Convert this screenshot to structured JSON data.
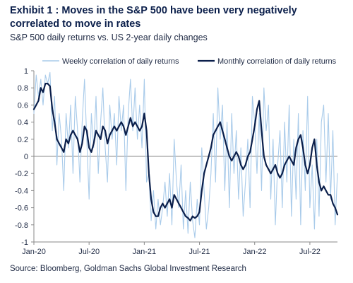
{
  "title": "Exhibit 1 : Moves in the S&P 500 have been very negatively correlated to move in rates",
  "subtitle": "S&P 500 daily returns vs. US 2-year daily changes",
  "source": "Source: Bloomberg, Goldman Sachs Global Investment Research",
  "chart_data": {
    "type": "line",
    "title": "Exhibit 1 : Moves in the S&P 500 have been very negatively correlated to move in rates",
    "subtitle": "S&P 500 daily returns vs. US 2-year daily changes",
    "xlabel": "",
    "ylabel": "",
    "ylim": [
      -1,
      1
    ],
    "xlim": [
      0,
      33
    ],
    "grid": false,
    "legend_placement": "top",
    "y_ticks": [
      {
        "value": 1,
        "label": "1"
      },
      {
        "value": 0.8,
        "label": "0.8"
      },
      {
        "value": 0.6,
        "label": "0.6"
      },
      {
        "value": 0.4,
        "label": "0.4"
      },
      {
        "value": 0.2,
        "label": "0.2"
      },
      {
        "value": 0,
        "label": "0"
      },
      {
        "value": -0.2,
        "label": "-0.2"
      },
      {
        "value": -0.4,
        "label": "-0.4"
      },
      {
        "value": -0.6,
        "label": "-0.6"
      },
      {
        "value": -0.8,
        "label": "-0.8"
      },
      {
        "value": -1,
        "label": "-1"
      }
    ],
    "x_ticks": [
      {
        "value": 0,
        "label": "Jan-20"
      },
      {
        "value": 6,
        "label": "Jul-20"
      },
      {
        "value": 12,
        "label": "Jan-21"
      },
      {
        "value": 18,
        "label": "Jul-21"
      },
      {
        "value": 24,
        "label": "Jan-22"
      },
      {
        "value": 30,
        "label": "Jul-22"
      }
    ],
    "series": [
      {
        "name": "Weekly correlation of daily returns",
        "color": "#a9cbea",
        "style": "thin",
        "x": [
          0,
          0.25,
          0.5,
          0.75,
          1,
          1.25,
          1.5,
          1.75,
          2,
          2.25,
          2.5,
          2.75,
          3,
          3.25,
          3.5,
          3.75,
          4,
          4.25,
          4.5,
          4.75,
          5,
          5.25,
          5.5,
          5.75,
          6,
          6.25,
          6.5,
          6.75,
          7,
          7.25,
          7.5,
          7.75,
          8,
          8.25,
          8.5,
          8.75,
          9,
          9.25,
          9.5,
          9.75,
          10,
          10.25,
          10.5,
          10.75,
          11,
          11.25,
          11.5,
          11.75,
          12,
          12.25,
          12.5,
          12.75,
          13,
          13.25,
          13.5,
          13.75,
          14,
          14.25,
          14.5,
          14.75,
          15,
          15.25,
          15.5,
          15.75,
          16,
          16.25,
          16.5,
          16.75,
          17,
          17.25,
          17.5,
          17.75,
          18,
          18.25,
          18.5,
          18.75,
          19,
          19.25,
          19.5,
          19.75,
          20,
          20.25,
          20.5,
          20.75,
          21,
          21.25,
          21.5,
          21.75,
          22,
          22.25,
          22.5,
          22.75,
          23,
          23.25,
          23.5,
          23.75,
          24,
          24.25,
          24.5,
          24.75,
          25,
          25.25,
          25.5,
          25.75,
          26,
          26.25,
          26.5,
          26.75,
          27,
          27.25,
          27.5,
          27.75,
          28,
          28.25,
          28.5,
          28.75,
          29,
          29.25,
          29.5,
          29.75,
          30,
          30.25,
          30.5,
          30.75,
          31,
          31.25,
          31.5,
          31.75,
          32,
          32.25,
          32.5,
          32.75,
          33
        ],
        "values": [
          0.5,
          0.95,
          0.7,
          0.9,
          0.6,
          0.95,
          0.85,
          0.98,
          0.3,
          0.7,
          -0.1,
          0.5,
          0.2,
          -0.4,
          0.5,
          0.1,
          0.6,
          -0.2,
          0.7,
          0.3,
          -0.3,
          0.4,
          0.9,
          0.2,
          -0.5,
          0.5,
          0.1,
          0.7,
          -0.2,
          0.4,
          0.8,
          0.1,
          -0.3,
          0.6,
          0.2,
          0.5,
          -0.1,
          0.7,
          0.3,
          0.6,
          -0.4,
          0.5,
          0.9,
          0.3,
          0.8,
          0.2,
          0.6,
          0.1,
          0.9,
          -0.3,
          -0.2,
          -0.75,
          -0.4,
          -0.85,
          -0.5,
          -0.8,
          -0.6,
          -0.3,
          -0.7,
          -0.2,
          -0.8,
          0.2,
          -0.3,
          -0.6,
          -0.1,
          -0.85,
          -0.4,
          -0.9,
          -0.3,
          -0.75,
          -0.95,
          -0.5,
          -0.8,
          0.1,
          -0.4,
          -0.85,
          -0.6,
          -0.2,
          0.5,
          -0.3,
          0.8,
          0.2,
          0.6,
          -0.4,
          0.4,
          -0.6,
          0.5,
          -0.2,
          0.3,
          -0.5,
          0.1,
          -0.7,
          -0.3,
          0.2,
          -0.6,
          0.7,
          0.4,
          -0.2,
          0.5,
          -0.4,
          0.8,
          0.3,
          0.6,
          -0.5,
          0.2,
          -0.8,
          -0.1,
          0.3,
          -0.6,
          0.4,
          -0.3,
          0.6,
          -0.7,
          0.2,
          -0.5,
          0.5,
          -0.8,
          0.3,
          -0.4,
          0.7,
          -0.6,
          -0.1,
          -0.85,
          0.2,
          -0.7,
          0.4,
          0.6,
          -0.3,
          0.5,
          -0.5,
          0.3,
          -0.8,
          -0.2
        ]
      },
      {
        "name": "Monthly correlation of daily returns",
        "color": "#0b1f4b",
        "style": "thick",
        "x": [
          0,
          0.25,
          0.5,
          0.75,
          1,
          1.25,
          1.5,
          1.75,
          2,
          2.25,
          2.5,
          2.75,
          3,
          3.25,
          3.5,
          3.75,
          4,
          4.25,
          4.5,
          4.75,
          5,
          5.25,
          5.5,
          5.75,
          6,
          6.25,
          6.5,
          6.75,
          7,
          7.25,
          7.5,
          7.75,
          8,
          8.25,
          8.5,
          8.75,
          9,
          9.25,
          9.5,
          9.75,
          10,
          10.25,
          10.5,
          10.75,
          11,
          11.25,
          11.5,
          11.75,
          12,
          12.25,
          12.5,
          12.75,
          13,
          13.25,
          13.5,
          13.75,
          14,
          14.25,
          14.5,
          14.75,
          15,
          15.25,
          15.5,
          15.75,
          16,
          16.25,
          16.5,
          16.75,
          17,
          17.25,
          17.5,
          17.75,
          18,
          18.25,
          18.5,
          18.75,
          19,
          19.25,
          19.5,
          19.75,
          20,
          20.25,
          20.5,
          20.75,
          21,
          21.25,
          21.5,
          21.75,
          22,
          22.25,
          22.5,
          22.75,
          23,
          23.25,
          23.5,
          23.75,
          24,
          24.25,
          24.5,
          24.75,
          25,
          25.25,
          25.5,
          25.75,
          26,
          26.25,
          26.5,
          26.75,
          27,
          27.25,
          27.5,
          27.75,
          28,
          28.25,
          28.5,
          28.75,
          29,
          29.25,
          29.5,
          29.75,
          30,
          30.25,
          30.5,
          30.75,
          31,
          31.25,
          31.5,
          31.75,
          32,
          32.25,
          32.5,
          32.75,
          33
        ],
        "values": [
          0.55,
          0.6,
          0.65,
          0.8,
          0.75,
          0.85,
          0.85,
          0.82,
          0.55,
          0.4,
          0.2,
          0.15,
          0.1,
          0.05,
          0.2,
          0.15,
          0.25,
          0.3,
          0.25,
          0.2,
          0.05,
          0.15,
          0.35,
          0.3,
          0.1,
          0.05,
          0.15,
          0.3,
          0.25,
          0.2,
          0.35,
          0.3,
          0.15,
          0.25,
          0.3,
          0.35,
          0.3,
          0.35,
          0.4,
          0.35,
          0.25,
          0.35,
          0.45,
          0.35,
          0.4,
          0.35,
          0.3,
          0.35,
          0.5,
          0.3,
          -0.2,
          -0.5,
          -0.65,
          -0.7,
          -0.7,
          -0.6,
          -0.55,
          -0.6,
          -0.55,
          -0.5,
          -0.6,
          -0.45,
          -0.5,
          -0.55,
          -0.6,
          -0.65,
          -0.7,
          -0.72,
          -0.75,
          -0.7,
          -0.72,
          -0.7,
          -0.65,
          -0.4,
          -0.2,
          -0.1,
          0.0,
          0.1,
          0.25,
          0.3,
          0.35,
          0.4,
          0.3,
          0.2,
          0.1,
          0.0,
          -0.05,
          0.0,
          0.05,
          0.0,
          -0.1,
          -0.15,
          -0.1,
          0.0,
          0.05,
          0.2,
          0.35,
          0.55,
          0.65,
          0.3,
          0.0,
          -0.1,
          -0.15,
          -0.2,
          -0.15,
          -0.1,
          -0.2,
          -0.25,
          -0.2,
          -0.1,
          -0.05,
          0.0,
          -0.05,
          -0.1,
          0.1,
          0.2,
          0.25,
          0.1,
          -0.1,
          -0.2,
          -0.1,
          0.1,
          0.2,
          -0.1,
          -0.3,
          -0.4,
          -0.35,
          -0.4,
          -0.45,
          -0.45,
          -0.55,
          -0.6,
          -0.68
        ]
      }
    ]
  }
}
